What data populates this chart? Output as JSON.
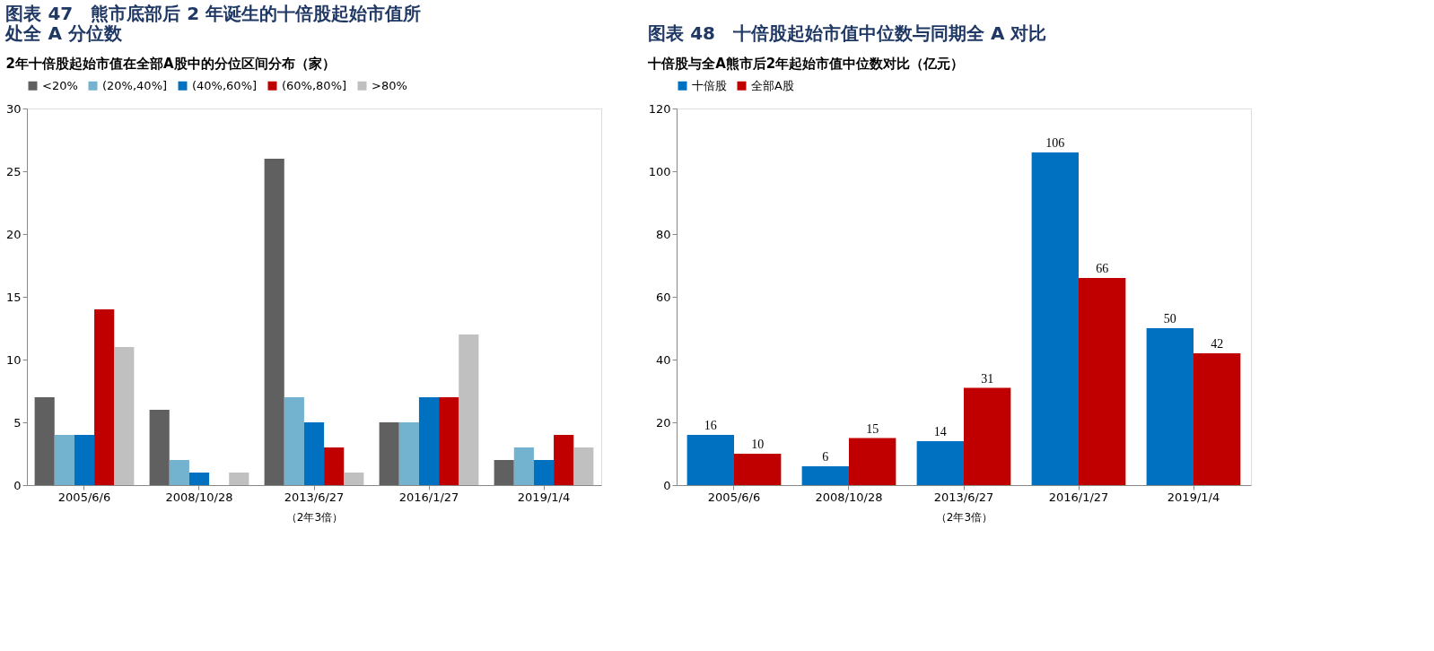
{
  "chart_data": [
    {
      "type": "bar",
      "title": "图表 47　熊市底部后 2 年诞生的十倍股起始市值所处全 A 分位数",
      "subtitle": "2年十倍股起始市值在全部A股中的分位区间分布（家）",
      "xlabel": "（2年3倍）",
      "categories": [
        "2005/6/6",
        "2008/10/28",
        "2013/6/27",
        "2016/1/27",
        "2019/1/4"
      ],
      "series": [
        {
          "name": "<20%",
          "color": "#606060",
          "values": [
            7,
            6,
            26,
            5,
            2
          ]
        },
        {
          "name": "(20%,40%]",
          "color": "#74b3d0",
          "values": [
            4,
            2,
            7,
            5,
            3
          ]
        },
        {
          "name": "(40%,60%]",
          "color": "#0070c0",
          "values": [
            4,
            1,
            5,
            7,
            2
          ]
        },
        {
          "name": "(60%,80%]",
          "color": "#c00000",
          "values": [
            14,
            0,
            3,
            7,
            4
          ]
        },
        {
          "name": ">80%",
          "color": "#c0c0c0",
          "values": [
            11,
            1,
            1,
            12,
            3
          ]
        }
      ],
      "ylim": [
        0,
        30
      ],
      "yticks": [
        0,
        5,
        10,
        15,
        20,
        25,
        30
      ],
      "grid": false,
      "legend": "top"
    },
    {
      "type": "bar",
      "title": "图表 48　十倍股起始市值中位数与同期全 A 对比",
      "subtitle": "十倍股与全A熊市后2年起始市值中位数对比（亿元）",
      "xlabel": "（2年3倍）",
      "categories": [
        "2005/6/6",
        "2008/10/28",
        "2013/6/27",
        "2016/1/27",
        "2019/1/4"
      ],
      "series": [
        {
          "name": "十倍股",
          "color": "#0070c0",
          "values": [
            16,
            6,
            14,
            106,
            50
          ]
        },
        {
          "name": "全部A股",
          "color": "#c00000",
          "values": [
            10,
            15,
            31,
            66,
            42
          ]
        }
      ],
      "ylim": [
        0,
        120
      ],
      "yticks": [
        0,
        20,
        40,
        60,
        80,
        100,
        120
      ],
      "grid": false,
      "legend": "top",
      "data_labels": true
    }
  ]
}
